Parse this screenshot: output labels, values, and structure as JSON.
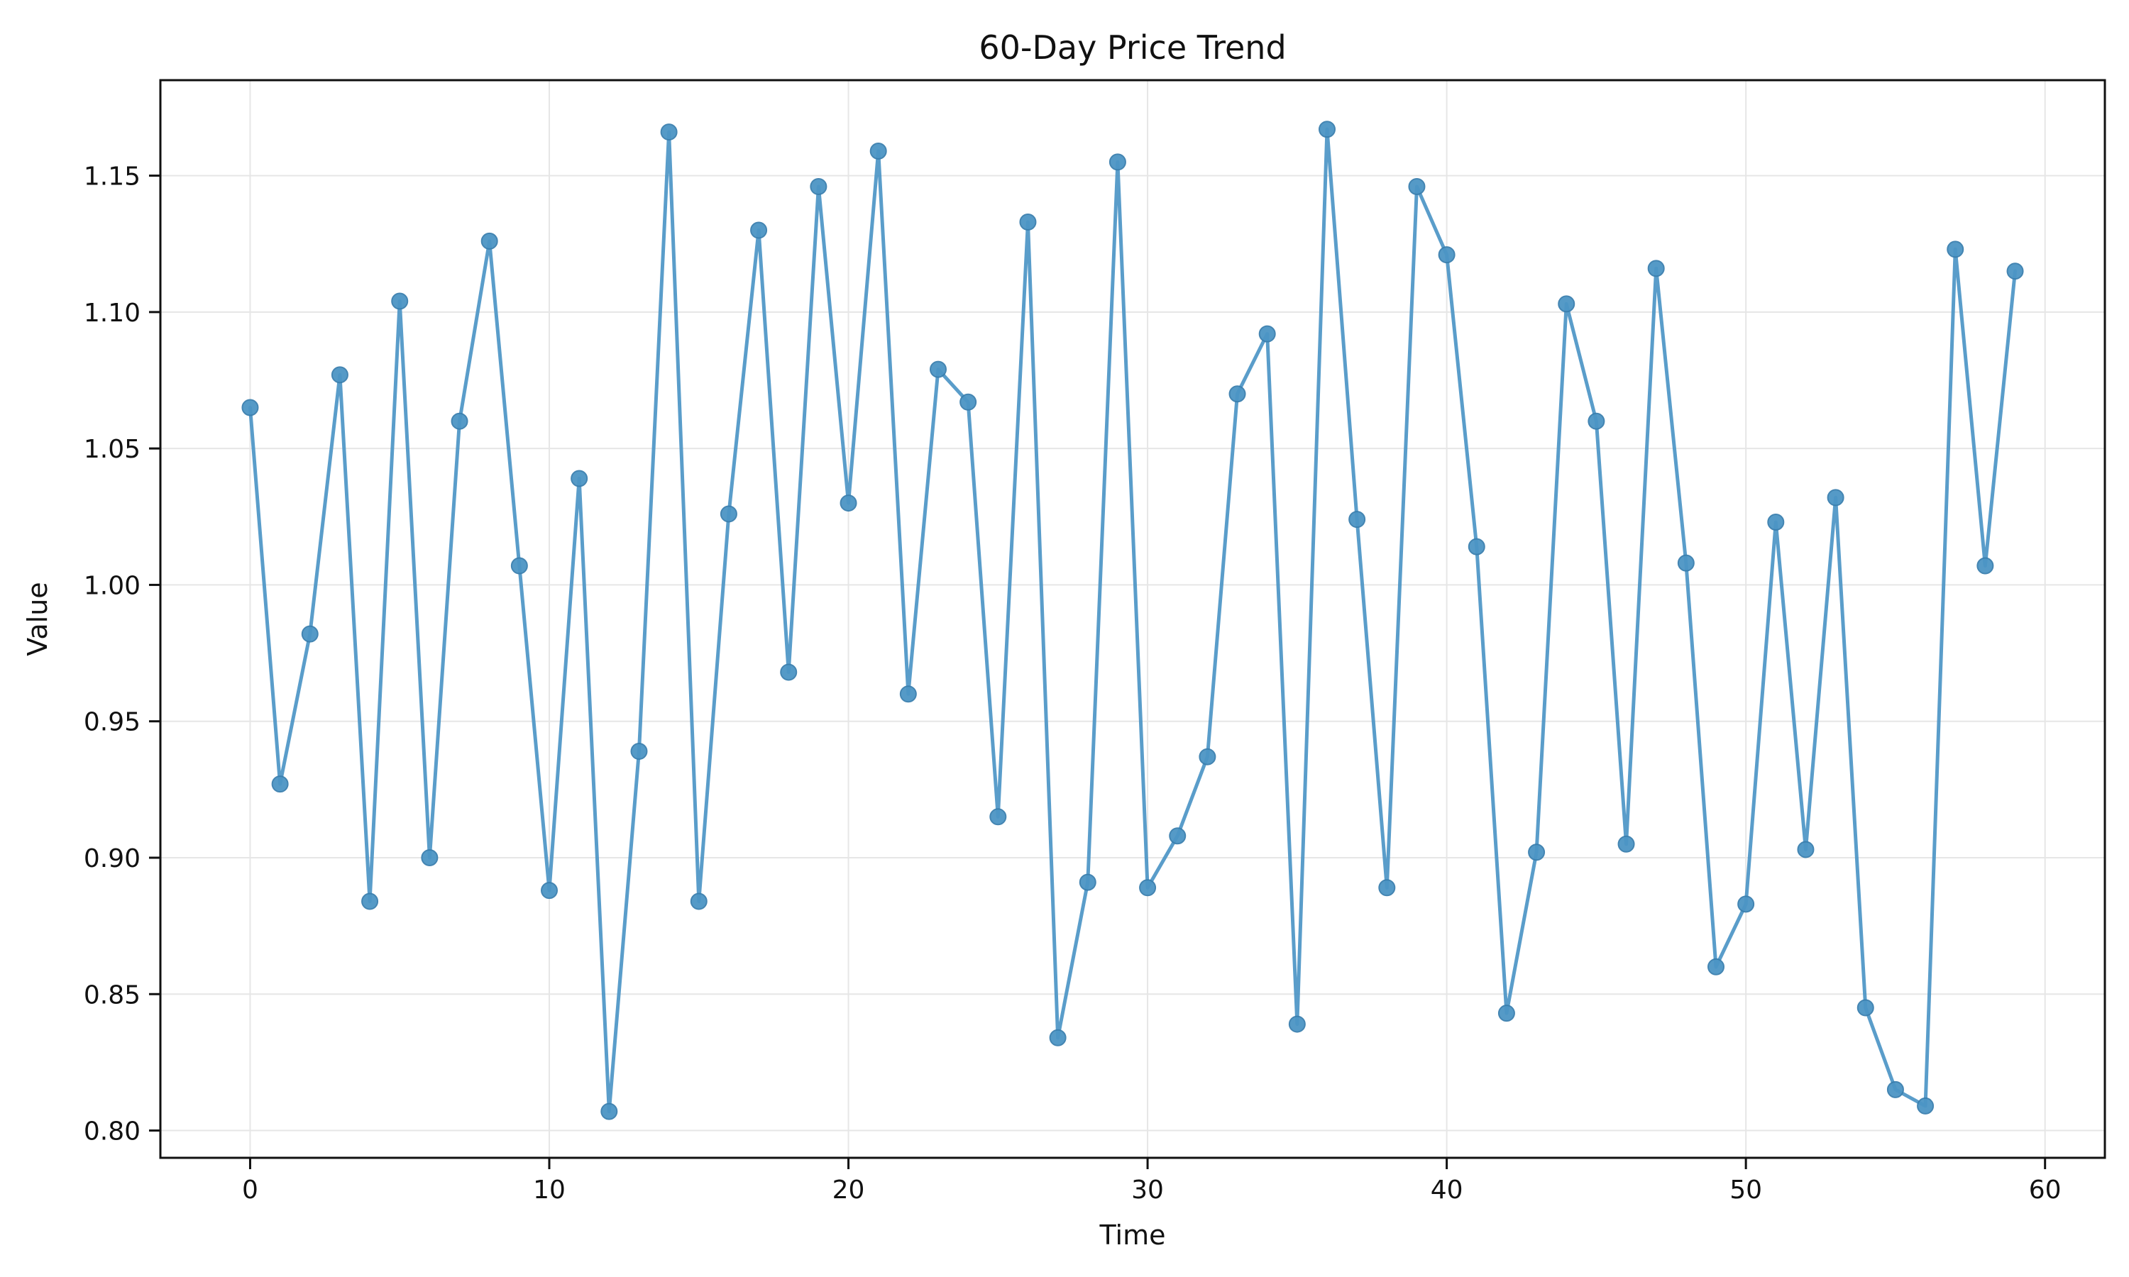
{
  "chart_data": {
    "type": "line",
    "title": "60-Day Price Trend",
    "xlabel": "Time",
    "ylabel": "Value",
    "xlim": [
      -3,
      62
    ],
    "ylim": [
      0.79,
      1.185
    ],
    "grid": true,
    "x_ticks": [
      0,
      10,
      20,
      30,
      40,
      50,
      60
    ],
    "y_ticks": [
      0.8,
      0.85,
      0.9,
      0.95,
      1.0,
      1.05,
      1.1,
      1.15
    ],
    "x_tick_labels": [
      "0",
      "10",
      "20",
      "30",
      "40",
      "50",
      "60"
    ],
    "y_tick_labels": [
      "0.80",
      "0.85",
      "0.90",
      "0.95",
      "1.00",
      "1.05",
      "1.10",
      "1.15"
    ],
    "colors": {
      "line": "#4C95C5",
      "marker": "#4C95C5",
      "marker_stroke": "#3A7FAE",
      "grid": "#E6E6E6",
      "axis": "#111111"
    },
    "series": [
      {
        "x": [
          0,
          1,
          2,
          3,
          4,
          5,
          6,
          7,
          8,
          9,
          10,
          11,
          12,
          13,
          14,
          15,
          16,
          17,
          18,
          19,
          20,
          21,
          22,
          23,
          24,
          25,
          26,
          27,
          28,
          29,
          30,
          31,
          32,
          33,
          34,
          35,
          36,
          37,
          38,
          39,
          40,
          41,
          42,
          43,
          44,
          45,
          46,
          47,
          48,
          49,
          50,
          51,
          52,
          53,
          54,
          55,
          56,
          57,
          58,
          59
        ],
        "y": [
          1.065,
          0.927,
          0.982,
          1.077,
          0.884,
          1.104,
          0.9,
          1.06,
          1.126,
          1.007,
          0.888,
          1.039,
          0.807,
          0.939,
          1.166,
          0.884,
          1.026,
          1.13,
          0.968,
          1.146,
          1.03,
          1.159,
          0.96,
          1.079,
          1.067,
          0.915,
          1.133,
          0.834,
          0.891,
          1.155,
          0.889,
          0.908,
          0.937,
          1.07,
          1.092,
          0.839,
          1.167,
          1.024,
          0.889,
          1.146,
          1.121,
          1.014,
          0.843,
          0.902,
          1.103,
          1.06,
          0.905,
          1.116,
          1.008,
          0.86,
          0.883,
          1.023,
          0.903,
          1.032,
          0.845,
          0.815,
          0.809,
          1.123,
          1.007,
          1.115
        ]
      }
    ]
  }
}
